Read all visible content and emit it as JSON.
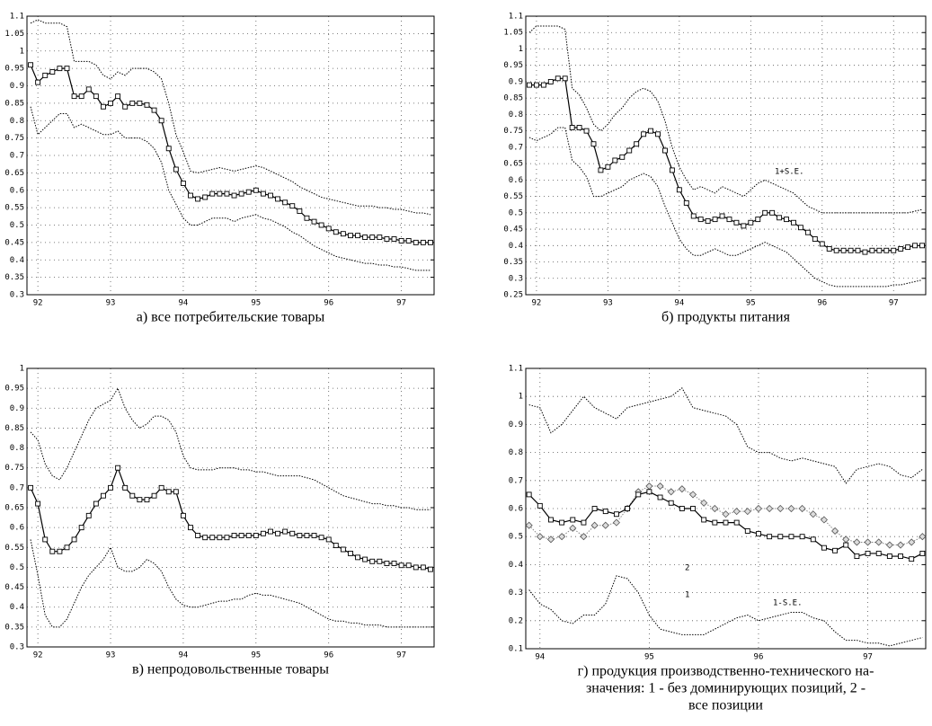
{
  "chart_data": [
    {
      "type": "line",
      "title": "а) все потребительские товары",
      "x": [
        91.9,
        92,
        92.1,
        92.2,
        92.3,
        92.4,
        92.5,
        92.6,
        92.7,
        92.8,
        92.9,
        93,
        93.1,
        93.2,
        93.3,
        93.4,
        93.5,
        93.6,
        93.7,
        93.8,
        93.9,
        94,
        94.1,
        94.2,
        94.3,
        94.4,
        94.5,
        94.6,
        94.7,
        94.8,
        94.9,
        95,
        95.1,
        95.2,
        95.3,
        95.4,
        95.5,
        95.6,
        95.7,
        95.8,
        95.9,
        96,
        96.1,
        96.2,
        96.3,
        96.4,
        96.5,
        96.6,
        96.7,
        96.8,
        96.9,
        97,
        97.1,
        97.2,
        97.3,
        97.4
      ],
      "xlim": [
        91.85,
        97.45
      ],
      "xticks": [
        92,
        93,
        94,
        95,
        96,
        97
      ],
      "ylim": [
        0.3,
        1.1
      ],
      "yticks": [
        0.3,
        0.35,
        0.4,
        0.45,
        0.5,
        0.55,
        0.6,
        0.65,
        0.7,
        0.75,
        0.8,
        0.85,
        0.9,
        0.95,
        1,
        1.05,
        1.1
      ],
      "grid": true,
      "series": [
        {
          "color": "#000000",
          "line": "dotted",
          "values": [
            1.08,
            1.09,
            1.08,
            1.08,
            1.08,
            1.07,
            0.97,
            0.97,
            0.97,
            0.96,
            0.93,
            0.92,
            0.94,
            0.93,
            0.95,
            0.95,
            0.95,
            0.94,
            0.92,
            0.85,
            0.76,
            0.71,
            0.655,
            0.65,
            0.655,
            0.66,
            0.665,
            0.66,
            0.655,
            0.66,
            0.665,
            0.67,
            0.665,
            0.655,
            0.645,
            0.635,
            0.625,
            0.61,
            0.6,
            0.59,
            0.58,
            0.575,
            0.57,
            0.565,
            0.56,
            0.555,
            0.555,
            0.555,
            0.55,
            0.55,
            0.545,
            0.545,
            0.54,
            0.535,
            0.535,
            0.53
          ]
        },
        {
          "color": "#000000",
          "line": "dotted",
          "values": [
            0.84,
            0.76,
            0.78,
            0.8,
            0.82,
            0.82,
            0.78,
            0.79,
            0.78,
            0.77,
            0.76,
            0.76,
            0.77,
            0.75,
            0.75,
            0.75,
            0.74,
            0.72,
            0.68,
            0.6,
            0.56,
            0.52,
            0.5,
            0.5,
            0.51,
            0.52,
            0.52,
            0.52,
            0.51,
            0.52,
            0.525,
            0.53,
            0.52,
            0.515,
            0.505,
            0.495,
            0.48,
            0.47,
            0.455,
            0.44,
            0.43,
            0.42,
            0.41,
            0.405,
            0.4,
            0.395,
            0.39,
            0.39,
            0.385,
            0.385,
            0.38,
            0.38,
            0.375,
            0.37,
            0.37,
            0.37
          ]
        },
        {
          "color": "#000000",
          "line": "solid",
          "marker": "square",
          "values": [
            0.96,
            0.91,
            0.93,
            0.94,
            0.95,
            0.95,
            0.87,
            0.87,
            0.89,
            0.87,
            0.84,
            0.85,
            0.87,
            0.84,
            0.85,
            0.85,
            0.845,
            0.83,
            0.8,
            0.72,
            0.66,
            0.62,
            0.585,
            0.575,
            0.58,
            0.59,
            0.59,
            0.59,
            0.585,
            0.59,
            0.595,
            0.6,
            0.59,
            0.585,
            0.575,
            0.565,
            0.555,
            0.54,
            0.52,
            0.51,
            0.5,
            0.49,
            0.48,
            0.475,
            0.47,
            0.47,
            0.465,
            0.465,
            0.465,
            0.46,
            0.46,
            0.455,
            0.455,
            0.45,
            0.45,
            0.45
          ]
        }
      ]
    },
    {
      "type": "line",
      "title": "б) продукты питания",
      "x": [
        91.9,
        92,
        92.1,
        92.2,
        92.3,
        92.4,
        92.5,
        92.6,
        92.7,
        92.8,
        92.9,
        93,
        93.1,
        93.2,
        93.3,
        93.4,
        93.5,
        93.6,
        93.7,
        93.8,
        93.9,
        94,
        94.1,
        94.2,
        94.3,
        94.4,
        94.5,
        94.6,
        94.7,
        94.8,
        94.9,
        95,
        95.1,
        95.2,
        95.3,
        95.4,
        95.5,
        95.6,
        95.7,
        95.8,
        95.9,
        96,
        96.1,
        96.2,
        96.3,
        96.4,
        96.5,
        96.6,
        96.7,
        96.8,
        96.9,
        97,
        97.1,
        97.2,
        97.3,
        97.4
      ],
      "xlim": [
        91.85,
        97.45
      ],
      "xticks": [
        92,
        93,
        94,
        95,
        96,
        97
      ],
      "ylim": [
        0.25,
        1.1
      ],
      "yticks": [
        0.25,
        0.3,
        0.35,
        0.4,
        0.45,
        0.5,
        0.55,
        0.6,
        0.65,
        0.7,
        0.75,
        0.8,
        0.85,
        0.9,
        0.95,
        1,
        1.05,
        1.1
      ],
      "grid": true,
      "series": [
        {
          "color": "#000000",
          "line": "dotted",
          "values": [
            1.05,
            1.07,
            1.07,
            1.07,
            1.07,
            1.06,
            0.88,
            0.86,
            0.82,
            0.77,
            0.75,
            0.77,
            0.8,
            0.82,
            0.85,
            0.87,
            0.88,
            0.87,
            0.84,
            0.78,
            0.7,
            0.64,
            0.6,
            0.57,
            0.58,
            0.57,
            0.56,
            0.58,
            0.57,
            0.56,
            0.55,
            0.57,
            0.59,
            0.6,
            0.59,
            0.58,
            0.57,
            0.56,
            0.54,
            0.52,
            0.51,
            0.5,
            0.5,
            0.5,
            0.5,
            0.5,
            0.5,
            0.5,
            0.5,
            0.5,
            0.5,
            0.5,
            0.5,
            0.5,
            0.505,
            0.51
          ]
        },
        {
          "color": "#000000",
          "line": "dotted",
          "values": [
            0.73,
            0.72,
            0.73,
            0.74,
            0.76,
            0.76,
            0.66,
            0.64,
            0.61,
            0.55,
            0.55,
            0.56,
            0.57,
            0.58,
            0.6,
            0.61,
            0.62,
            0.61,
            0.58,
            0.52,
            0.47,
            0.42,
            0.39,
            0.37,
            0.37,
            0.38,
            0.39,
            0.38,
            0.37,
            0.37,
            0.38,
            0.39,
            0.4,
            0.41,
            0.4,
            0.39,
            0.38,
            0.36,
            0.34,
            0.32,
            0.3,
            0.29,
            0.28,
            0.275,
            0.275,
            0.275,
            0.275,
            0.275,
            0.275,
            0.275,
            0.275,
            0.28,
            0.28,
            0.285,
            0.29,
            0.295
          ]
        },
        {
          "color": "#000000",
          "line": "solid",
          "marker": "square",
          "values": [
            0.89,
            0.89,
            0.89,
            0.9,
            0.91,
            0.91,
            0.76,
            0.76,
            0.75,
            0.71,
            0.63,
            0.64,
            0.66,
            0.67,
            0.69,
            0.71,
            0.74,
            0.75,
            0.74,
            0.69,
            0.63,
            0.57,
            0.53,
            0.49,
            0.48,
            0.475,
            0.48,
            0.49,
            0.48,
            0.47,
            0.46,
            0.47,
            0.48,
            0.5,
            0.5,
            0.485,
            0.48,
            0.47,
            0.455,
            0.44,
            0.42,
            0.405,
            0.39,
            0.385,
            0.385,
            0.385,
            0.385,
            0.38,
            0.385,
            0.385,
            0.385,
            0.385,
            0.39,
            0.395,
            0.4,
            0.4
          ]
        }
      ]
    },
    {
      "type": "line",
      "title": "в) непродовольственные товары",
      "x": [
        91.9,
        92,
        92.1,
        92.2,
        92.3,
        92.4,
        92.5,
        92.6,
        92.7,
        92.8,
        92.9,
        93,
        93.1,
        93.2,
        93.3,
        93.4,
        93.5,
        93.6,
        93.7,
        93.8,
        93.9,
        94,
        94.1,
        94.2,
        94.3,
        94.4,
        94.5,
        94.6,
        94.7,
        94.8,
        94.9,
        95,
        95.1,
        95.2,
        95.3,
        95.4,
        95.5,
        95.6,
        95.7,
        95.8,
        95.9,
        96,
        96.1,
        96.2,
        96.3,
        96.4,
        96.5,
        96.6,
        96.7,
        96.8,
        96.9,
        97,
        97.1,
        97.2,
        97.3,
        97.4
      ],
      "xlim": [
        91.85,
        97.45
      ],
      "xticks": [
        92,
        93,
        94,
        95,
        96,
        97
      ],
      "ylim": [
        0.3,
        1
      ],
      "yticks": [
        0.3,
        0.35,
        0.4,
        0.45,
        0.5,
        0.55,
        0.6,
        0.65,
        0.7,
        0.75,
        0.8,
        0.85,
        0.9,
        0.95,
        1
      ],
      "grid": true,
      "series": [
        {
          "color": "#000000",
          "line": "dotted",
          "values": [
            0.84,
            0.82,
            0.76,
            0.73,
            0.72,
            0.75,
            0.79,
            0.83,
            0.87,
            0.9,
            0.91,
            0.92,
            0.95,
            0.9,
            0.87,
            0.85,
            0.86,
            0.88,
            0.88,
            0.87,
            0.84,
            0.78,
            0.75,
            0.745,
            0.745,
            0.745,
            0.75,
            0.75,
            0.75,
            0.745,
            0.745,
            0.74,
            0.74,
            0.735,
            0.73,
            0.73,
            0.73,
            0.73,
            0.725,
            0.72,
            0.71,
            0.7,
            0.69,
            0.68,
            0.675,
            0.67,
            0.665,
            0.66,
            0.66,
            0.655,
            0.655,
            0.65,
            0.65,
            0.645,
            0.645,
            0.645
          ]
        },
        {
          "color": "#000000",
          "line": "dotted",
          "values": [
            0.57,
            0.48,
            0.38,
            0.35,
            0.35,
            0.37,
            0.41,
            0.45,
            0.48,
            0.5,
            0.52,
            0.55,
            0.5,
            0.49,
            0.49,
            0.5,
            0.52,
            0.51,
            0.49,
            0.45,
            0.42,
            0.405,
            0.4,
            0.4,
            0.405,
            0.41,
            0.415,
            0.415,
            0.42,
            0.42,
            0.43,
            0.435,
            0.43,
            0.43,
            0.425,
            0.42,
            0.415,
            0.41,
            0.4,
            0.39,
            0.38,
            0.37,
            0.365,
            0.365,
            0.36,
            0.36,
            0.355,
            0.355,
            0.355,
            0.35,
            0.35,
            0.35,
            0.35,
            0.35,
            0.35,
            0.35
          ]
        },
        {
          "color": "#000000",
          "line": "solid",
          "marker": "square",
          "values": [
            0.7,
            0.66,
            0.57,
            0.54,
            0.54,
            0.55,
            0.57,
            0.6,
            0.63,
            0.66,
            0.68,
            0.7,
            0.75,
            0.7,
            0.68,
            0.67,
            0.67,
            0.68,
            0.7,
            0.69,
            0.69,
            0.63,
            0.6,
            0.58,
            0.575,
            0.575,
            0.575,
            0.575,
            0.58,
            0.58,
            0.58,
            0.58,
            0.585,
            0.59,
            0.585,
            0.59,
            0.585,
            0.58,
            0.58,
            0.58,
            0.575,
            0.57,
            0.555,
            0.545,
            0.535,
            0.525,
            0.52,
            0.515,
            0.515,
            0.51,
            0.51,
            0.505,
            0.505,
            0.5,
            0.5,
            0.495
          ]
        }
      ]
    },
    {
      "type": "line",
      "title": [
        "г) продукция производственно-технического на-",
        "значения: 1 - без доминирующих позиций, 2 -",
        "все позиции"
      ],
      "x": [
        93.9,
        94,
        94.1,
        94.2,
        94.3,
        94.4,
        94.5,
        94.6,
        94.7,
        94.8,
        94.9,
        95,
        95.1,
        95.2,
        95.3,
        95.4,
        95.5,
        95.6,
        95.7,
        95.8,
        95.9,
        96,
        96.1,
        96.2,
        96.3,
        96.4,
        96.5,
        96.6,
        96.7,
        96.8,
        96.9,
        97,
        97.1,
        97.2,
        97.3,
        97.4,
        97.5
      ],
      "xlim": [
        93.87,
        97.53
      ],
      "xticks": [
        94,
        95,
        96,
        97
      ],
      "ylim": [
        0.1,
        1.1
      ],
      "yticks": [
        0.1,
        0.2,
        0.3,
        0.4,
        0.5,
        0.6,
        0.7,
        0.8,
        0.9,
        1,
        1.1
      ],
      "grid": true,
      "annotations": [
        "1+S.E.",
        "2",
        "1",
        "1-S.E."
      ],
      "series": [
        {
          "color": "#000000",
          "line": "dotted",
          "values": [
            0.97,
            0.96,
            0.87,
            0.9,
            0.95,
            1.0,
            0.96,
            0.94,
            0.92,
            0.96,
            0.97,
            0.98,
            0.99,
            1.0,
            1.03,
            0.96,
            0.95,
            0.94,
            0.93,
            0.9,
            0.82,
            0.8,
            0.8,
            0.78,
            0.77,
            0.78,
            0.77,
            0.76,
            0.75,
            0.69,
            0.74,
            0.75,
            0.76,
            0.75,
            0.72,
            0.71,
            0.74
          ]
        },
        {
          "color": "#000000",
          "line": "dotted",
          "values": [
            0.31,
            0.26,
            0.24,
            0.2,
            0.19,
            0.22,
            0.22,
            0.26,
            0.36,
            0.35,
            0.3,
            0.22,
            0.17,
            0.16,
            0.15,
            0.15,
            0.15,
            0.17,
            0.19,
            0.21,
            0.22,
            0.2,
            0.21,
            0.22,
            0.23,
            0.23,
            0.21,
            0.2,
            0.16,
            0.13,
            0.13,
            0.12,
            0.12,
            0.11,
            0.12,
            0.13,
            0.14
          ]
        },
        {
          "color": "#888888",
          "line": "dotted",
          "marker": "diamond",
          "values": [
            0.54,
            0.5,
            0.49,
            0.5,
            0.53,
            0.5,
            0.54,
            0.54,
            0.55,
            0.6,
            0.66,
            0.68,
            0.68,
            0.66,
            0.67,
            0.65,
            0.62,
            0.6,
            0.58,
            0.59,
            0.59,
            0.6,
            0.6,
            0.6,
            0.6,
            0.6,
            0.58,
            0.56,
            0.52,
            0.49,
            0.48,
            0.48,
            0.48,
            0.47,
            0.47,
            0.48,
            0.5
          ]
        },
        {
          "color": "#000000",
          "line": "solid",
          "marker": "square",
          "values": [
            0.65,
            0.61,
            0.56,
            0.55,
            0.56,
            0.55,
            0.6,
            0.59,
            0.58,
            0.6,
            0.65,
            0.66,
            0.64,
            0.62,
            0.6,
            0.6,
            0.56,
            0.55,
            0.55,
            0.55,
            0.52,
            0.51,
            0.5,
            0.5,
            0.5,
            0.5,
            0.49,
            0.46,
            0.45,
            0.47,
            0.43,
            0.44,
            0.44,
            0.43,
            0.43,
            0.42,
            0.44
          ]
        }
      ]
    }
  ]
}
